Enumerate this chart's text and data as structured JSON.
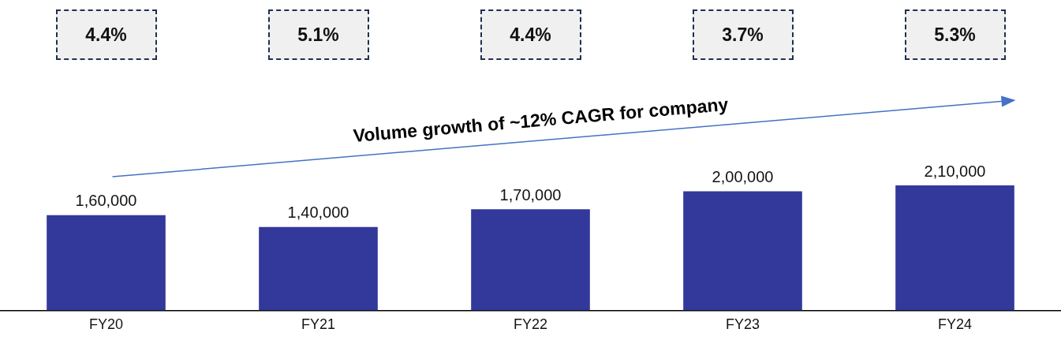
{
  "chart_data": {
    "type": "bar",
    "categories": [
      "FY20",
      "FY21",
      "FY22",
      "FY23",
      "FY24"
    ],
    "values": [
      160000,
      140000,
      170000,
      200000,
      210000
    ],
    "value_labels": [
      "1,60,000",
      "1,40,000",
      "1,70,000",
      "2,00,000",
      "2,10,000"
    ],
    "color": "#32399a",
    "annotations": [
      "4.4%",
      "5.1%",
      "4.4%",
      "3.7%",
      "5.3%",
      "Volume growth of ~12% CAGR for company"
    ],
    "grid": false,
    "legend": false
  }
}
